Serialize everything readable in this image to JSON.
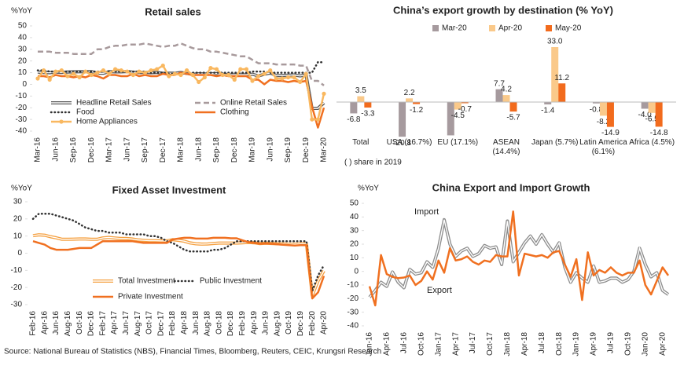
{
  "chart_data": [
    {
      "type": "line",
      "title": "Retail sales",
      "y_label": "%YoY",
      "categories": [
        "Mar-16",
        null,
        null,
        "Jun-16",
        null,
        null,
        "Sep-16",
        null,
        null,
        "Dec-16",
        null,
        null,
        "Mar-17",
        null,
        null,
        "Jun-17",
        null,
        null,
        "Sep-17",
        null,
        null,
        "Dec-17",
        null,
        null,
        "Mar-18",
        null,
        null,
        "Jun-18",
        null,
        null,
        "Sep-18",
        null,
        null,
        "Dec-18",
        null,
        null,
        "Mar-19",
        null,
        null,
        "Jun-19",
        null,
        null,
        "Sep-19",
        null,
        null,
        "Dec-19",
        null,
        null,
        "Mar-20"
      ],
      "ylim": [
        -40,
        50
      ],
      "yticks": [
        -40,
        -30,
        -20,
        -10,
        0,
        10,
        20,
        30,
        40,
        50
      ],
      "series": [
        {
          "name": "Headline Retail Sales",
          "color": "#595959",
          "line_style": "double",
          "values": [
            10.5,
            10.1,
            10,
            10.6,
            10.2,
            10.6,
            10.7,
            10.8,
            10.8,
            10.9,
            9.5,
            9.5,
            10.9,
            10.7,
            10.7,
            11,
            10.4,
            10.1,
            10.3,
            10,
            10.2,
            9.4,
            9.5,
            9.5,
            10.1,
            9.4,
            8.5,
            9,
            8.8,
            9,
            9.2,
            8.6,
            8.1,
            8.2,
            8.2,
            8.2,
            8.7,
            7.2,
            8.6,
            9.8,
            7.6,
            7.5,
            7.8,
            8,
            7.2,
            8,
            -20.5,
            -20.5,
            -15.8
          ]
        },
        {
          "name": "Online Retail Sales",
          "color": "#a89a9c",
          "line_style": "dashed",
          "values": [
            28,
            28,
            28,
            27,
            27,
            27,
            26,
            26,
            26,
            26,
            30,
            30,
            32,
            33,
            33,
            34,
            34,
            34,
            35,
            34,
            33,
            32,
            33,
            33,
            35,
            33,
            31,
            30,
            30,
            28,
            28,
            27,
            26,
            25,
            24,
            24,
            21,
            18,
            18,
            18,
            17,
            17,
            17,
            17,
            16,
            16,
            3,
            3,
            -1
          ]
        },
        {
          "name": "Food",
          "color": "#333333",
          "line_style": "dotted",
          "values": [
            12,
            12,
            11,
            11,
            11,
            11,
            11,
            11,
            11,
            11,
            11,
            11,
            11,
            11,
            11,
            11,
            11,
            11,
            11,
            10,
            10,
            10,
            9,
            9,
            9,
            9,
            10,
            10,
            10,
            10,
            10,
            10,
            10,
            10,
            10,
            10,
            11,
            11,
            11,
            10,
            10,
            10,
            10,
            10,
            10,
            10,
            10,
            19,
            19
          ]
        },
        {
          "name": "Clothing",
          "color": "#f07020",
          "line_style": "solid",
          "values": [
            7,
            7,
            6,
            8,
            7,
            7,
            6,
            7,
            6,
            8,
            7,
            5,
            8,
            8,
            7,
            7,
            9,
            7,
            8,
            7,
            7,
            9,
            8,
            8,
            10,
            9,
            8,
            8,
            8,
            8,
            7,
            8,
            7,
            7,
            7,
            7,
            4,
            4,
            0,
            4,
            3,
            3,
            2,
            3,
            2,
            3,
            -19,
            -37,
            -20
          ]
        },
        {
          "name": "Home Appliances",
          "color": "#f9b860",
          "line_style": "solid",
          "marker": true,
          "values": [
            5,
            12,
            4,
            11,
            12,
            7,
            9,
            6,
            11,
            8,
            10,
            12,
            9,
            13,
            12,
            11,
            8,
            11,
            10,
            12,
            13,
            16,
            7,
            9,
            8,
            12,
            8,
            2,
            6,
            14,
            13,
            8,
            8,
            4,
            13,
            13,
            3,
            7,
            9,
            12,
            5,
            5,
            6,
            6,
            2,
            9,
            -30,
            -30,
            -8
          ]
        }
      ]
    },
    {
      "type": "bar",
      "title": "China’s export growth by destination (% YoY)",
      "note": "(   ) share in 2019",
      "categories": [
        "Total",
        "USA (16.7%)",
        "EU (17.1%)",
        "ASEAN (14.4%)",
        "Japan (5.7%)",
        "Latin America (6.1%)",
        "Africa (4.5%)"
      ],
      "series": [
        {
          "name": "Mar-20",
          "color": "#a69a9e",
          "values": [
            -6.8,
            -20.8,
            -20,
            7.7,
            -1.4,
            -0.8,
            -4
          ],
          "value_labels": [
            "-6.8",
            "-20.8",
            null,
            "7.7",
            "-1.4",
            "-0.8",
            "-4.0"
          ]
        },
        {
          "name": "Apr-20",
          "color": "#fac98a",
          "values": [
            3.5,
            2.2,
            -4.5,
            4.2,
            33,
            -8.2,
            -6.5
          ],
          "value_labels": [
            "3.5",
            "2.2",
            "-4.5",
            "4.2",
            "33.0",
            "-8.2",
            "-6.5"
          ]
        },
        {
          "name": "May-20",
          "color": "#f26b1d",
          "values": [
            -3.3,
            -1.2,
            -0.7,
            -5.7,
            11.2,
            -14.9,
            -14.8
          ],
          "value_labels": [
            "-3.3",
            "-1.2",
            "-0.7",
            "-5.7",
            "11.2",
            "-14.9",
            "-14.8"
          ]
        }
      ]
    },
    {
      "type": "line",
      "title": "Fixed Asset Investment",
      "y_label": "%YoY",
      "categories": [
        "Feb-16",
        null,
        "Apr-16",
        null,
        "Jun-16",
        null,
        "Aug-16",
        null,
        "Oct-16",
        null,
        "Dec-16",
        null,
        "Feb-17",
        null,
        "Apr-17",
        null,
        "Jun-17",
        null,
        "Aug-17",
        null,
        "Oct-17",
        null,
        "Dec-17",
        null,
        "Feb-18",
        null,
        "Apr-18",
        null,
        "Jun-18",
        null,
        "Aug-18",
        null,
        "Oct-18",
        null,
        "Dec-18",
        null,
        "Feb-19",
        null,
        "Apr-19",
        null,
        "Jun-19",
        null,
        "Aug-19",
        null,
        "Oct-19",
        null,
        "Dec-19",
        null,
        "Feb-20",
        null,
        "Apr-20"
      ],
      "ylim": [
        -30,
        30
      ],
      "yticks": [
        -30,
        -20,
        -10,
        0,
        10,
        20,
        30
      ],
      "series": [
        {
          "name": "Total Investment",
          "color": "#f5a040",
          "line_style": "double",
          "values": [
            10.2,
            10.7,
            10.5,
            9.6,
            9,
            8.1,
            8.1,
            8.2,
            8.3,
            8.3,
            8.1,
            8.1,
            8.9,
            9.2,
            8.9,
            8.6,
            8.6,
            8.3,
            7.8,
            7.5,
            7.3,
            7.3,
            7.2,
            7.2,
            7.9,
            7.5,
            7,
            6,
            5.5,
            5.3,
            5.4,
            5.7,
            5.9,
            5.9,
            5.9,
            5.9,
            6.1,
            6.3,
            6.1,
            5.6,
            5.8,
            5.7,
            5.5,
            5.4,
            5.2,
            5.2,
            5.4,
            5.4,
            -24.5,
            -16.1,
            -10.3
          ]
        },
        {
          "name": "Public Investment",
          "color": "#333333",
          "line_style": "dotted",
          "values": [
            20,
            23,
            23,
            23,
            22,
            21,
            20,
            19,
            17,
            15,
            14,
            13,
            13,
            12,
            12,
            12,
            11,
            11,
            11,
            11,
            10,
            10,
            9,
            7,
            6,
            4,
            2,
            1,
            1,
            1,
            1,
            2,
            2,
            3,
            5,
            7,
            7,
            7,
            7,
            7,
            7,
            7,
            7,
            7,
            7,
            7,
            7,
            7,
            -22,
            -13,
            -7
          ]
        },
        {
          "name": "Private Investment",
          "color": "#f07020",
          "line_style": "solid",
          "values": [
            7,
            6,
            5,
            3,
            2,
            2,
            2,
            2.5,
            3,
            3,
            3,
            5,
            7,
            7,
            7,
            7,
            7,
            7,
            6.5,
            6,
            6,
            6,
            6,
            6,
            8,
            8.5,
            9,
            9,
            8.5,
            8.5,
            8.5,
            9,
            9,
            9,
            8.7,
            8.7,
            7.5,
            6.4,
            6,
            5.5,
            5.7,
            5.5,
            5.2,
            4.9,
            4.7,
            4.5,
            4.7,
            4.7,
            -26.4,
            -22.8,
            -13.3
          ]
        }
      ]
    },
    {
      "type": "line",
      "title": "China Export and Import Growth",
      "y_label": "%YoY",
      "categories": [
        "Jan-16",
        null,
        null,
        "Apr-16",
        null,
        null,
        "Jul-16",
        null,
        null,
        "Oct-16",
        null,
        null,
        "Jan-17",
        null,
        null,
        "Apr-17",
        null,
        null,
        "Jul-17",
        null,
        null,
        "Oct-17",
        null,
        null,
        "Jan-18",
        null,
        null,
        "Apr-18",
        null,
        null,
        "Jul-18",
        null,
        null,
        "Oct-18",
        null,
        null,
        "Jan-19",
        null,
        null,
        "Apr-19",
        null,
        null,
        "Jul-19",
        null,
        null,
        "Oct-19",
        null,
        null,
        "Jan-20",
        null,
        null,
        "Apr-20",
        null
      ],
      "ylim": [
        -40,
        50
      ],
      "yticks": [
        -40,
        -30,
        -20,
        -10,
        0,
        10,
        20,
        30,
        40,
        50
      ],
      "annotations": [
        "Import",
        "Export"
      ],
      "series": [
        {
          "name": "Import",
          "color": "#8c8c8c",
          "line_style": "double",
          "values": [
            -19,
            -14,
            -8,
            -11,
            -0.5,
            -8,
            -12,
            1.5,
            -2,
            -1,
            7,
            3,
            17,
            38,
            20,
            11,
            15,
            17,
            11,
            13,
            19,
            17,
            18,
            5,
            37,
            7,
            14,
            21,
            26,
            20,
            27,
            20,
            14,
            21,
            3,
            -8,
            -1,
            -5,
            -8,
            4,
            -8,
            -7,
            -5,
            -5,
            -8,
            -6,
            0,
            17,
            5,
            -4,
            -1,
            -14,
            -17
          ]
        },
        {
          "name": "Export",
          "color": "#f07020",
          "line_style": "solid",
          "values": [
            -11,
            -25,
            12,
            -2,
            -4,
            -5,
            -4.5,
            -3,
            -10,
            -7,
            0,
            -6,
            8,
            -1,
            17,
            8,
            9,
            11,
            7,
            5,
            8,
            7,
            12,
            11,
            11,
            44,
            -3,
            13,
            12,
            11,
            12,
            10,
            14,
            15,
            5,
            -4,
            9,
            -21,
            14,
            -3,
            1,
            -1,
            3,
            -1,
            -3,
            -1,
            -1,
            8,
            -10,
            -17,
            -7,
            3,
            -3
          ]
        }
      ]
    }
  ],
  "source": "Source: National Bureau of Statistics (NBS), Financial Times, Bloomberg, Reuters, CEIC, Krungsri Research"
}
